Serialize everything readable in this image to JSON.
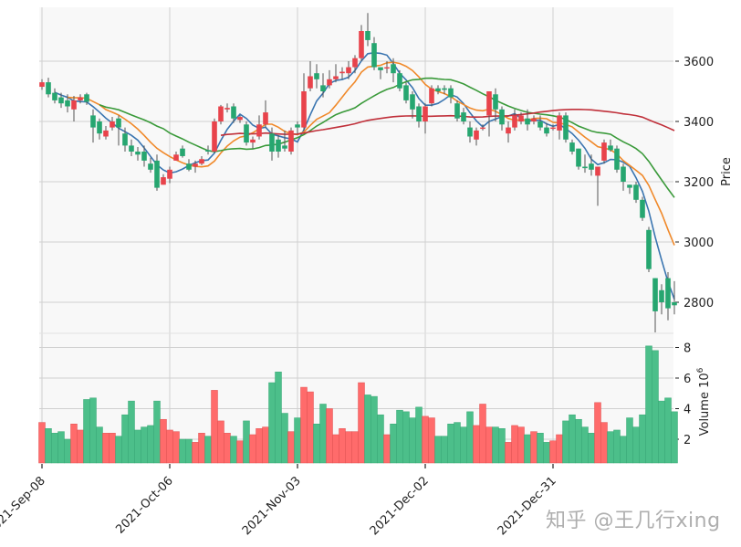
{
  "chart_data": {
    "type": "candlestick",
    "title": "",
    "panels": [
      {
        "name": "price",
        "ylabel": "Price",
        "yticks": [
          2800,
          3000,
          3200,
          3400,
          3600
        ],
        "ylim": [
          2705,
          3780
        ]
      },
      {
        "name": "volume",
        "ylabel": "Volume  10^6",
        "yticks": [
          2,
          4,
          6,
          8
        ],
        "ylim": [
          0.5,
          8.3
        ]
      }
    ],
    "x_tick_labels": [
      {
        "index": 0,
        "label": "2021-Sep-08"
      },
      {
        "index": 20,
        "label": "2021-Oct-06"
      },
      {
        "index": 40,
        "label": "2021-Nov-03"
      },
      {
        "index": 60,
        "label": "2021-Dec-02"
      },
      {
        "index": 80,
        "label": "2021-Dec-31"
      }
    ],
    "moving_averages": [
      {
        "period": 5,
        "color": "#3a75b0"
      },
      {
        "period": 10,
        "color": "#f0892a"
      },
      {
        "period": 20,
        "color": "#3a9a3a"
      },
      {
        "period": 60,
        "color": "#c0303a"
      }
    ],
    "colors": {
      "up": "#e8434b",
      "down": "#26a670",
      "vol_up": "#ff6b6b",
      "vol_down": "#4cbf8a",
      "grid": "#d0d0d0",
      "panel_bg": "#f8f8f8"
    },
    "candles": [
      [
        3515,
        3530,
        3505,
        3540,
        3.1
      ],
      [
        3530,
        3490,
        3480,
        3545,
        2.7
      ],
      [
        3495,
        3470,
        3460,
        3510,
        2.4
      ],
      [
        3480,
        3460,
        3445,
        3495,
        2.5
      ],
      [
        3470,
        3450,
        3430,
        3490,
        2.0
      ],
      [
        3440,
        3470,
        3400,
        3485,
        3.0
      ],
      [
        3470,
        3480,
        3460,
        3490,
        2.6
      ],
      [
        3490,
        3465,
        3455,
        3495,
        4.6
      ],
      [
        3420,
        3380,
        3330,
        3440,
        4.7
      ],
      [
        3400,
        3360,
        3340,
        3410,
        2.8
      ],
      [
        3350,
        3370,
        3340,
        3385,
        2.4
      ],
      [
        3380,
        3400,
        3370,
        3415,
        2.4
      ],
      [
        3410,
        3380,
        3320,
        3420,
        2.2
      ],
      [
        3360,
        3320,
        3300,
        3380,
        3.6
      ],
      [
        3320,
        3300,
        3285,
        3340,
        4.5
      ],
      [
        3300,
        3290,
        3270,
        3315,
        2.6
      ],
      [
        3300,
        3270,
        3250,
        3320,
        2.8
      ],
      [
        3260,
        3240,
        3230,
        3280,
        2.9
      ],
      [
        3270,
        3180,
        3170,
        3290,
        4.5
      ],
      [
        3190,
        3215,
        3190,
        3225,
        3.3
      ],
      [
        3210,
        3240,
        3195,
        3250,
        2.6
      ],
      [
        3270,
        3290,
        3270,
        3300,
        2.5
      ],
      [
        3310,
        3285,
        3280,
        3320,
        2.0
      ],
      [
        3260,
        3240,
        3235,
        3275,
        2.0
      ],
      [
        3250,
        3260,
        3230,
        3270,
        1.8
      ],
      [
        3260,
        3275,
        3255,
        3285,
        2.4
      ],
      [
        3305,
        3300,
        3290,
        3320,
        2.2
      ],
      [
        3300,
        3400,
        3295,
        3410,
        5.2
      ],
      [
        3400,
        3450,
        3390,
        3455,
        3.2
      ],
      [
        3440,
        3445,
        3430,
        3460,
        2.4
      ],
      [
        3450,
        3410,
        3395,
        3460,
        2.2
      ],
      [
        3405,
        3415,
        3395,
        3420,
        1.9
      ],
      [
        3390,
        3330,
        3320,
        3400,
        3.2
      ],
      [
        3330,
        3340,
        3310,
        3350,
        2.3
      ],
      [
        3350,
        3390,
        3340,
        3420,
        2.7
      ],
      [
        3390,
        3430,
        3380,
        3470,
        2.8
      ],
      [
        3360,
        3300,
        3270,
        3380,
        5.7
      ],
      [
        3340,
        3300,
        3280,
        3355,
        6.4
      ],
      [
        3320,
        3310,
        3300,
        3370,
        3.7
      ],
      [
        3300,
        3370,
        3290,
        3380,
        2.5
      ],
      [
        3390,
        3380,
        3360,
        3400,
        3.4
      ],
      [
        3380,
        3500,
        3370,
        3560,
        5.4
      ],
      [
        3510,
        3550,
        3500,
        3600,
        5.1
      ],
      [
        3560,
        3540,
        3510,
        3590,
        3.0
      ],
      [
        3520,
        3500,
        3480,
        3560,
        4.3
      ],
      [
        3520,
        3540,
        3510,
        3570,
        4.0
      ],
      [
        3540,
        3550,
        3530,
        3590,
        2.3
      ],
      [
        3560,
        3565,
        3540,
        3580,
        2.7
      ],
      [
        3560,
        3580,
        3540,
        3600,
        2.5
      ],
      [
        3580,
        3610,
        3560,
        3620,
        2.5
      ],
      [
        3610,
        3700,
        3600,
        3720,
        5.7
      ],
      [
        3700,
        3670,
        3650,
        3760,
        4.9
      ],
      [
        3660,
        3580,
        3570,
        3680,
        4.8
      ],
      [
        3580,
        3570,
        3540,
        3580,
        3.6
      ],
      [
        3580,
        3580,
        3560,
        3600,
        2.3
      ],
      [
        3590,
        3560,
        3530,
        3610,
        3.0
      ],
      [
        3560,
        3510,
        3500,
        3570,
        3.9
      ],
      [
        3520,
        3470,
        3460,
        3530,
        3.8
      ],
      [
        3490,
        3440,
        3410,
        3500,
        3.4
      ],
      [
        3450,
        3400,
        3380,
        3460,
        4.1
      ],
      [
        3400,
        3450,
        3360,
        3460,
        3.5
      ],
      [
        3460,
        3510,
        3450,
        3520,
        3.4
      ],
      [
        3510,
        3500,
        3490,
        3520,
        2.2
      ],
      [
        3510,
        3505,
        3490,
        3520,
        2.2
      ],
      [
        3510,
        3480,
        3460,
        3520,
        3.0
      ],
      [
        3460,
        3410,
        3400,
        3470,
        3.1
      ],
      [
        3430,
        3400,
        3390,
        3445,
        2.8
      ],
      [
        3380,
        3350,
        3330,
        3400,
        3.8
      ],
      [
        3340,
        3370,
        3320,
        3380,
        2.9
      ],
      [
        3380,
        3380,
        3370,
        3390,
        4.3
      ],
      [
        3420,
        3500,
        3350,
        3420,
        2.8
      ],
      [
        3490,
        3440,
        3400,
        3510,
        2.8
      ],
      [
        3440,
        3390,
        3370,
        3450,
        2.7
      ],
      [
        3360,
        3380,
        3330,
        3400,
        1.8
      ],
      [
        3380,
        3420,
        3370,
        3440,
        2.9
      ],
      [
        3400,
        3420,
        3390,
        3430,
        2.8
      ],
      [
        3410,
        3390,
        3370,
        3440,
        2.3
      ],
      [
        3400,
        3410,
        3390,
        3420,
        2.5
      ],
      [
        3400,
        3380,
        3370,
        3420,
        2.4
      ],
      [
        3380,
        3360,
        3350,
        3395,
        1.8
      ],
      [
        3380,
        3380,
        3370,
        3390,
        1.9
      ],
      [
        3370,
        3420,
        3340,
        3430,
        2.3
      ],
      [
        3420,
        3340,
        3330,
        3430,
        3.2
      ],
      [
        3330,
        3300,
        3290,
        3340,
        3.6
      ],
      [
        3310,
        3250,
        3240,
        3310,
        3.3
      ],
      [
        3250,
        3245,
        3230,
        3290,
        2.8
      ],
      [
        3260,
        3240,
        3220,
        3290,
        2.4
      ],
      [
        3220,
        3250,
        3120,
        3250,
        4.4
      ],
      [
        3270,
        3330,
        3260,
        3340,
        3.1
      ],
      [
        3320,
        3305,
        3300,
        3340,
        2.5
      ],
      [
        3310,
        3240,
        3230,
        3320,
        2.6
      ],
      [
        3250,
        3200,
        3170,
        3260,
        2.2
      ],
      [
        3190,
        3180,
        3160,
        3190,
        3.4
      ],
      [
        3190,
        3140,
        3130,
        3200,
        2.8
      ],
      [
        3140,
        3080,
        3070,
        3150,
        3.6
      ],
      [
        3040,
        2910,
        2900,
        3050,
        8.1
      ],
      [
        2880,
        2770,
        2700,
        2880,
        7.8
      ],
      [
        2840,
        2800,
        2760,
        2860,
        4.5
      ],
      [
        2880,
        2780,
        2740,
        2900,
        4.7
      ],
      [
        2800,
        2790,
        2760,
        2870,
        3.8
      ]
    ]
  },
  "watermark": "知乎 @王几行xing"
}
